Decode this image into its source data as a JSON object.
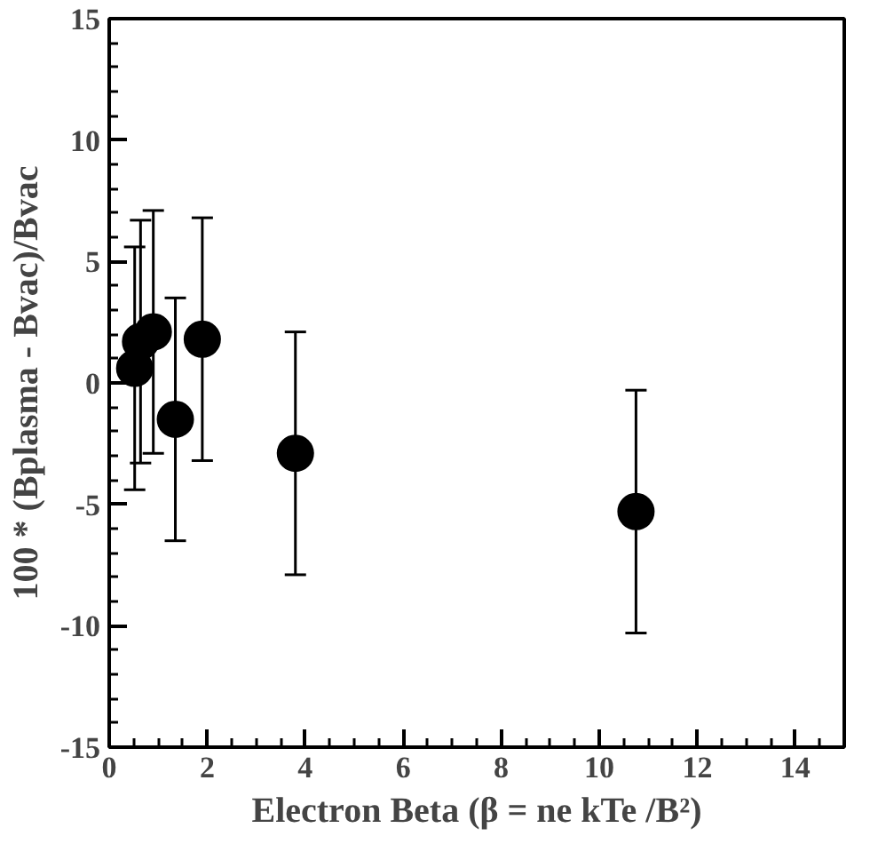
{
  "chart_data": {
    "type": "scatter",
    "xlabel": "Electron Beta (β = ne kTe /B²)",
    "ylabel": "100 * (Bplasma - Bvac)/Bvac",
    "x": [
      0.52,
      0.64,
      0.9,
      1.35,
      1.9,
      3.8,
      10.75
    ],
    "series": [
      {
        "color": "#000000",
        "values": [
          0.6,
          1.7,
          2.1,
          -1.5,
          1.8,
          -2.9,
          -5.3
        ],
        "errors": [
          5,
          5,
          5,
          5,
          5,
          5,
          5
        ]
      }
    ],
    "xlim": [
      0,
      15
    ],
    "ylim": [
      -15,
      15
    ],
    "xticks": [
      0,
      2,
      4,
      6,
      8,
      10,
      12,
      14
    ],
    "yticks": [
      -15,
      -10,
      -5,
      0,
      5,
      10,
      15
    ],
    "marker": "circle",
    "grid": false
  }
}
